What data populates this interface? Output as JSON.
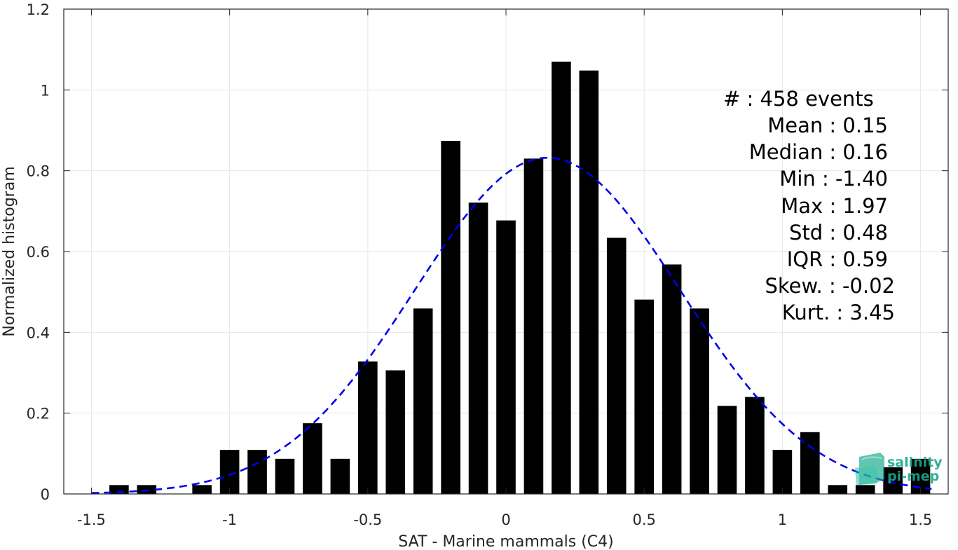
{
  "chart_data": {
    "type": "bar",
    "title": "",
    "xlabel": "SAT - Marine mammals (C4)",
    "ylabel": "Normalized histogram",
    "xlim": [
      -1.6,
      1.6
    ],
    "ylim": [
      0,
      1.2
    ],
    "xticks": [
      "-1.5",
      "-1",
      "-0.5",
      "0",
      "0.5",
      "1",
      "1.5"
    ],
    "xtick_values": [
      -1.5,
      -1,
      -0.5,
      0,
      0.5,
      1,
      1.5
    ],
    "yticks": [
      "0",
      "0.2",
      "0.4",
      "0.6",
      "0.8",
      "1",
      "1.2"
    ],
    "ytick_values": [
      0,
      0.2,
      0.4,
      0.6,
      0.8,
      1.0,
      1.2
    ],
    "grid": true,
    "bar_color": "#000000",
    "fit_color": "#0000ee",
    "bin_centers": [
      -1.4,
      -1.3,
      -1.1,
      -1.0,
      -0.9,
      -0.8,
      -0.7,
      -0.6,
      -0.5,
      -0.4,
      -0.3,
      -0.2,
      -0.1,
      0.0,
      0.1,
      0.2,
      0.3,
      0.4,
      0.5,
      0.6,
      0.7,
      0.8,
      0.9,
      1.0,
      1.1,
      1.2,
      1.3,
      1.4,
      1.5
    ],
    "values": [
      0.022,
      0.022,
      0.022,
      0.109,
      0.109,
      0.087,
      0.175,
      0.087,
      0.328,
      0.306,
      0.459,
      0.874,
      0.721,
      0.677,
      0.83,
      1.07,
      1.048,
      0.634,
      0.481,
      0.568,
      0.459,
      0.218,
      0.24,
      0.109,
      0.153,
      0.022,
      0.022,
      0.066,
      0.087
    ],
    "fit": {
      "type": "normal",
      "mean": 0.15,
      "std": 0.48,
      "peak": 0.832
    }
  },
  "stats": {
    "count": "#  : 458 events",
    "mean": "Mean : 0.15",
    "median": "Median : 0.16",
    "min": "Min : -1.40",
    "max": "Max : 1.97",
    "std": "Std : 0.48",
    "iqr": "IQR : 0.59",
    "skew": "Skew. : -0.02",
    "kurt": "Kurt. : 3.45"
  },
  "logo": {
    "line1": "salinity",
    "line2": "pi-mep",
    "color": "#1aa88c"
  }
}
